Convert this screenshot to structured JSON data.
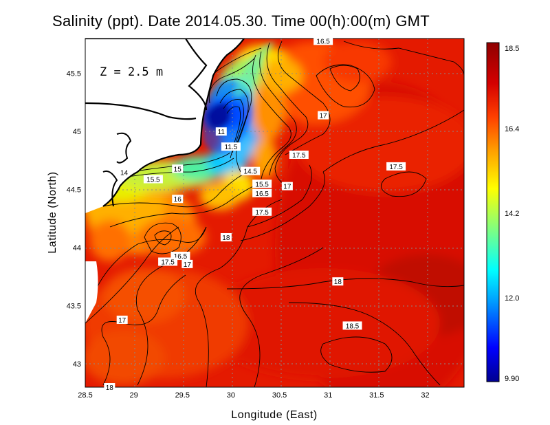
{
  "title": "Salinity (ppt). Date 2014.05.30. Time 00(h):00(m) GMT",
  "depth_label": "Z = 2.5 m",
  "axes": {
    "xlabel": "Longitude (East)",
    "ylabel": "Latitude (North)",
    "x_ticks": [
      "28.5",
      "29",
      "29.5",
      "30",
      "30.5",
      "31",
      "31.5",
      "32"
    ],
    "y_ticks": [
      "43",
      "43.5",
      "44",
      "44.5",
      "45",
      "45.5"
    ],
    "xlim": [
      28.5,
      32.4
    ],
    "ylim": [
      42.8,
      45.8
    ]
  },
  "colorbar": {
    "ticks": [
      "18.5",
      "16.4",
      "14.2",
      "12.0",
      "9.90"
    ],
    "min": 9.9,
    "max": 18.5,
    "colors": [
      "#00008f",
      "#0000ff",
      "#00a0ff",
      "#00ffff",
      "#80ff80",
      "#ffff00",
      "#ffa000",
      "#ff4000",
      "#d40000",
      "#8f0000"
    ]
  },
  "contour_labels": [
    {
      "text": "16.5",
      "lon": 30.95,
      "lat": 45.78
    },
    {
      "text": "17",
      "lon": 30.95,
      "lat": 45.14
    },
    {
      "text": "11",
      "lon": 29.9,
      "lat": 45.0
    },
    {
      "text": "11.5",
      "lon": 30.0,
      "lat": 44.87
    },
    {
      "text": "17.5",
      "lon": 30.7,
      "lat": 44.8
    },
    {
      "text": "17.5",
      "lon": 31.7,
      "lat": 44.7
    },
    {
      "text": "14",
      "lon": 28.9,
      "lat": 44.65
    },
    {
      "text": "15",
      "lon": 29.45,
      "lat": 44.68
    },
    {
      "text": "14.5",
      "lon": 30.2,
      "lat": 44.66
    },
    {
      "text": "15.5",
      "lon": 29.2,
      "lat": 44.59
    },
    {
      "text": "15.5",
      "lon": 30.32,
      "lat": 44.55
    },
    {
      "text": "17",
      "lon": 30.58,
      "lat": 44.53
    },
    {
      "text": "16.5",
      "lon": 30.32,
      "lat": 44.47
    },
    {
      "text": "16",
      "lon": 29.45,
      "lat": 44.42
    },
    {
      "text": "17.5",
      "lon": 30.32,
      "lat": 44.31
    },
    {
      "text": "18",
      "lon": 29.95,
      "lat": 44.09
    },
    {
      "text": "16.5",
      "lon": 29.48,
      "lat": 43.93
    },
    {
      "text": "17.5",
      "lon": 29.35,
      "lat": 43.88
    },
    {
      "text": "17",
      "lon": 29.55,
      "lat": 43.86
    },
    {
      "text": "18",
      "lon": 31.1,
      "lat": 43.71
    },
    {
      "text": "17",
      "lon": 28.88,
      "lat": 43.38
    },
    {
      "text": "18.5",
      "lon": 31.25,
      "lat": 43.33
    },
    {
      "text": "18",
      "lon": 28.75,
      "lat": 42.8
    }
  ]
}
